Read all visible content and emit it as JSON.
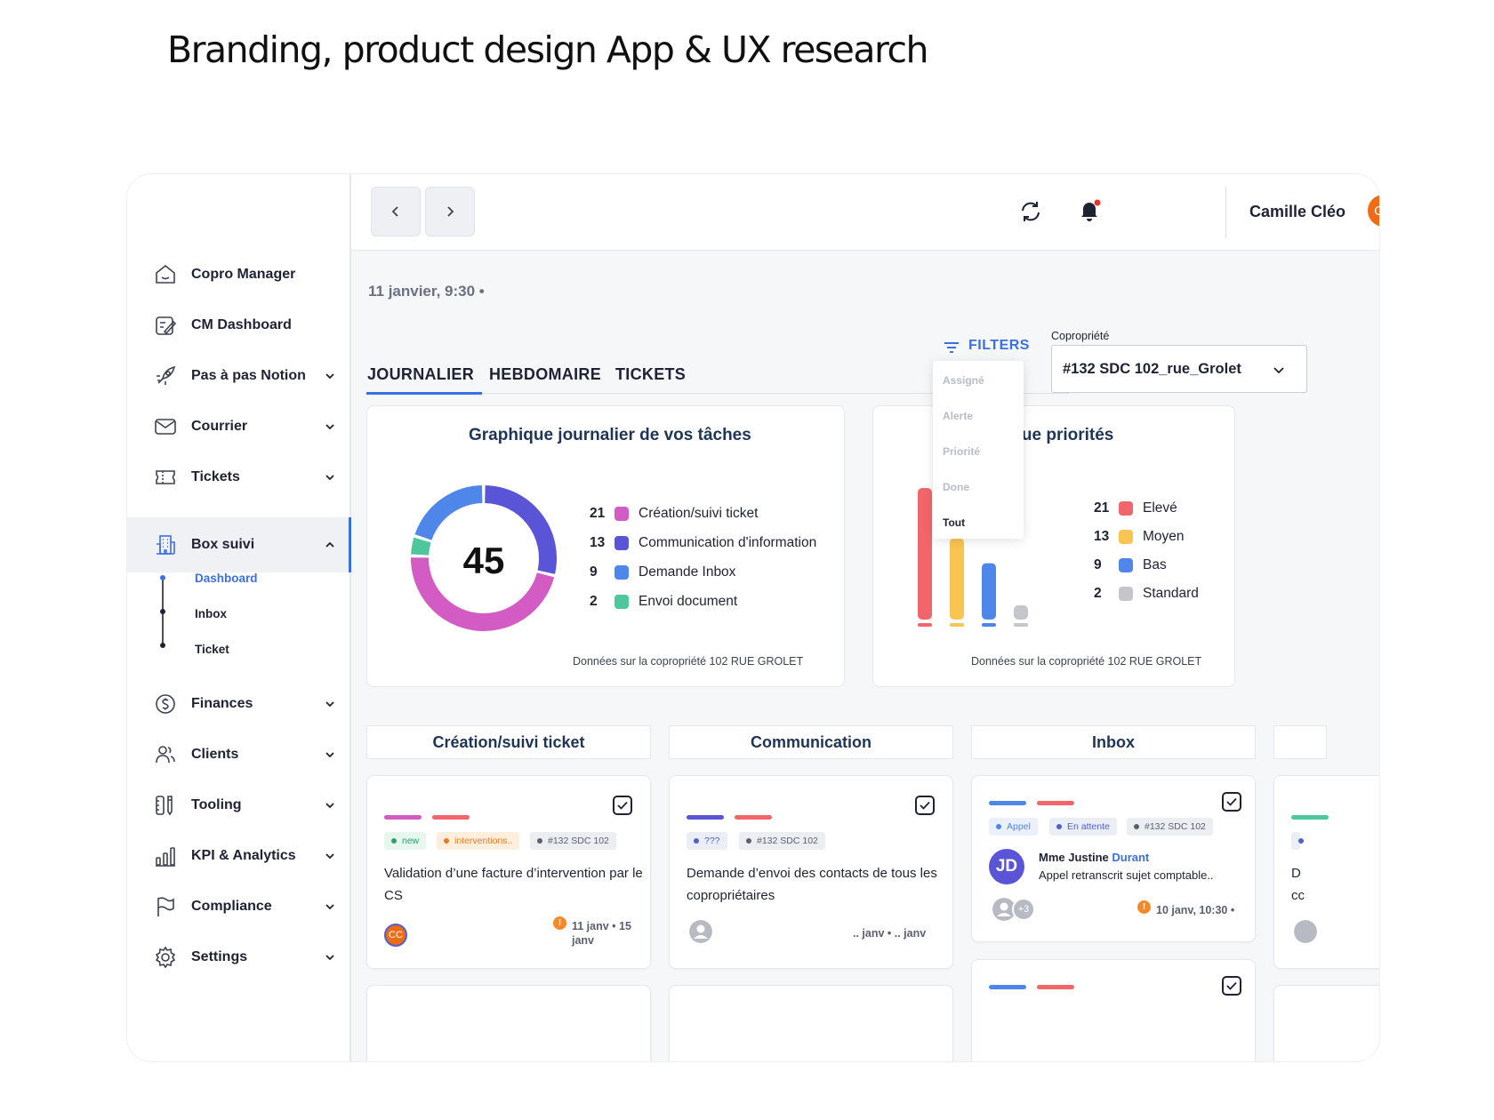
{
  "page_heading": "Branding, product design App & UX research",
  "sidebar": {
    "items": [
      {
        "label": "Copro Manager",
        "icon": "home-icon"
      },
      {
        "label": "CM Dashboard",
        "icon": "edit-board-icon"
      },
      {
        "label": "Pas à pas Notion",
        "icon": "rocket-icon"
      },
      {
        "label": "Courrier",
        "icon": "mail-icon"
      },
      {
        "label": "Tickets",
        "icon": "ticket-icon"
      },
      {
        "label": "Box suivi",
        "icon": "building-icon"
      },
      {
        "label": "Finances",
        "icon": "dollar-icon"
      },
      {
        "label": "Clients",
        "icon": "users-icon"
      },
      {
        "label": "Tooling",
        "icon": "tools-icon"
      },
      {
        "label": "KPI & Analytics",
        "icon": "analytics-icon"
      },
      {
        "label": "Compliance",
        "icon": "flag-icon"
      },
      {
        "label": "Settings",
        "icon": "gear-icon"
      }
    ],
    "sub_items": [
      "Dashboard",
      "Inbox",
      "Ticket"
    ]
  },
  "topbar": {
    "user_name": "Camille Cléo",
    "avatar_initials": "CC"
  },
  "datetime": "11 janvier, 9:30 •",
  "tabs": [
    "JOURNALIER",
    "HEBDOMAIRE",
    "TICKETS"
  ],
  "filters": {
    "label": "FILTERS",
    "options": [
      "Assigné",
      "Alerte",
      "Priorité",
      "Done",
      "Tout"
    ]
  },
  "copro": {
    "label": "Copropriété",
    "value": "#132 SDC 102_rue_Grolet"
  },
  "donut_card": {
    "title": "Graphique journalier de vos tâches",
    "total": "45",
    "footer": "Données sur la copropriété 102 RUE GROLET"
  },
  "priority_card": {
    "title_visible": "ique priorités",
    "footer": "Données sur la copropriété 102 RUE GROLET"
  },
  "chart_data": [
    {
      "type": "pie",
      "title": "Graphique journalier de vos tâches",
      "center_label": "45",
      "categories": [
        "Création/suivi ticket",
        "Communication d'information",
        "Demande Inbox",
        "Envoi document"
      ],
      "values": [
        21,
        13,
        9,
        2
      ],
      "colors": [
        "#d35bc4",
        "#5a55d6",
        "#4f86ea",
        "#4ec79c"
      ]
    },
    {
      "type": "bar",
      "title": "ique priorités",
      "categories": [
        "Elevé",
        "Moyen",
        "Bas",
        "Standard"
      ],
      "values": [
        21,
        13,
        9,
        2
      ],
      "colors": [
        "#f2666b",
        "#f8c452",
        "#4f86ea",
        "#c4c6cc"
      ]
    }
  ],
  "columns": [
    "Création/suivi ticket",
    "Communication",
    "Inbox"
  ],
  "cards": {
    "c1": {
      "chips": [
        "new",
        "interventions..",
        "#132 SDC 102"
      ],
      "text_line1": "Validation d’une facture d’intervention par le",
      "text_line2": "CS",
      "avatar": "CC",
      "date_line1": "11 janv • 15",
      "date_line2": "janv"
    },
    "c2": {
      "chips": [
        "???",
        "#132 SDC 102"
      ],
      "text_line1": "Demande d’envoi des contacts de tous les",
      "text_line2": "copropriétaires",
      "date": ".. janv • .. janv"
    },
    "c3": {
      "chips": [
        "Appel",
        "En attente",
        "#132 SDC 102"
      ],
      "avatar": "JD",
      "person_prefix": "Mme Justine",
      "person_name": "Durant",
      "message": "Appel retranscrit sujet comptable..",
      "extra": "+3",
      "date": "10 janv, 10:30 •"
    },
    "c4": {
      "text_line1": "D",
      "text_line2": "cc"
    }
  },
  "colors": {
    "accent": "#3c6fe0",
    "heading": "#1e3556",
    "avatar_orange": "#f06b12",
    "jd_purple": "#5a55d6"
  }
}
